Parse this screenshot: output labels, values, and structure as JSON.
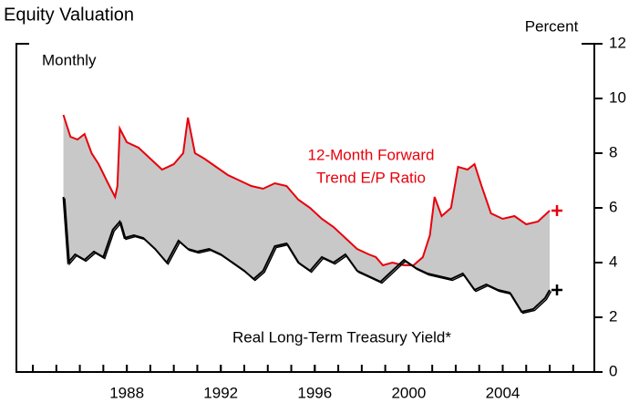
{
  "chart_data": {
    "type": "line",
    "title": "Equity Valuation",
    "y_axis_label": "Percent",
    "frequency_label": "Monthly",
    "annotations": [
      {
        "lines": [
          "12-Month Forward",
          "Trend E/P Ratio"
        ],
        "color": "#e8000b"
      },
      {
        "lines": [
          "Real Long-Term Treasury Yield*"
        ],
        "color": "#000000"
      }
    ],
    "fill_color": "#c8c8c8",
    "xlim": [
      1983.3,
      2007.9
    ],
    "xticks": [
      1988,
      1992,
      1996,
      2000,
      2004
    ],
    "xminorticks": [
      1984,
      1985,
      1986,
      1987,
      1988,
      1989,
      1990,
      1991,
      1992,
      1993,
      1994,
      1995,
      1996,
      1997,
      1998,
      1999,
      2000,
      2001,
      2002,
      2003,
      2004,
      2005,
      2006,
      2007
    ],
    "ylim": [
      0,
      12
    ],
    "yticks": [
      0,
      2,
      4,
      6,
      8,
      10,
      12
    ],
    "series": [
      {
        "name": "12-Month Forward Trend E/P Ratio",
        "color": "#e8000b",
        "x": [
          1985.3,
          1985.6,
          1985.9,
          1986.2,
          1986.5,
          1986.8,
          1987.2,
          1987.5,
          1987.6,
          1987.7,
          1988.0,
          1988.5,
          1989.0,
          1989.5,
          1990.0,
          1990.4,
          1990.6,
          1990.9,
          1991.3,
          1991.8,
          1992.3,
          1992.8,
          1993.3,
          1993.8,
          1994.3,
          1994.8,
          1995.3,
          1995.8,
          1996.3,
          1996.8,
          1997.3,
          1997.8,
          1998.3,
          1998.6,
          1998.9,
          1999.3,
          1999.8,
          2000.2,
          2000.6,
          2000.9,
          2001.1,
          2001.4,
          2001.8,
          2002.1,
          2002.5,
          2002.8,
          2003.1,
          2003.5,
          2004.0,
          2004.5,
          2005.0,
          2005.5,
          2006.0
        ],
        "values": [
          9.4,
          8.6,
          8.5,
          8.7,
          8.0,
          7.6,
          6.9,
          6.4,
          6.8,
          8.9,
          8.4,
          8.2,
          7.8,
          7.4,
          7.6,
          8.0,
          9.3,
          8.0,
          7.8,
          7.5,
          7.2,
          7.0,
          6.8,
          6.7,
          6.9,
          6.8,
          6.3,
          6.0,
          5.6,
          5.3,
          4.9,
          4.5,
          4.3,
          4.2,
          3.9,
          4.0,
          3.9,
          3.9,
          4.2,
          5.0,
          6.4,
          5.7,
          6.0,
          7.5,
          7.4,
          7.6,
          6.8,
          5.8,
          5.6,
          5.7,
          5.4,
          5.5,
          5.9
        ]
      },
      {
        "name": "Real Long-Term Treasury Yield*",
        "color": "#000000",
        "x": [
          1985.3,
          1985.5,
          1985.8,
          1986.2,
          1986.6,
          1987.0,
          1987.4,
          1987.7,
          1987.9,
          1988.3,
          1988.7,
          1989.2,
          1989.7,
          1990.2,
          1990.6,
          1991.0,
          1991.5,
          1992.0,
          1992.5,
          1993.0,
          1993.4,
          1993.8,
          1994.3,
          1994.8,
          1995.3,
          1995.8,
          1996.3,
          1996.8,
          1997.3,
          1997.8,
          1998.3,
          1998.8,
          1999.3,
          1999.8,
          2000.3,
          2000.8,
          2001.3,
          2001.8,
          2002.3,
          2002.8,
          2003.3,
          2003.8,
          2004.3,
          2004.8,
          2005.3,
          2005.8,
          2006.0
        ],
        "values": [
          6.4,
          4.0,
          4.3,
          4.1,
          4.4,
          4.2,
          5.2,
          5.5,
          4.9,
          5.0,
          4.9,
          4.5,
          4.0,
          4.8,
          4.5,
          4.4,
          4.5,
          4.3,
          4.0,
          3.7,
          3.4,
          3.7,
          4.6,
          4.7,
          4.0,
          3.7,
          4.2,
          4.0,
          4.3,
          3.7,
          3.5,
          3.3,
          3.7,
          4.1,
          3.8,
          3.6,
          3.5,
          3.4,
          3.6,
          3.0,
          3.2,
          3.0,
          2.9,
          2.2,
          2.3,
          2.7,
          3.0
        ]
      }
    ]
  }
}
